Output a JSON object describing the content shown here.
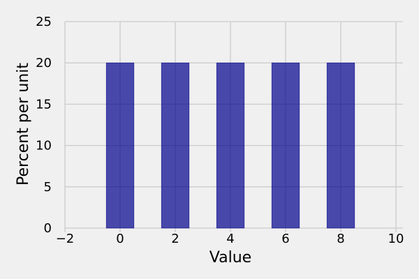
{
  "chart_data": {
    "type": "bar",
    "title": "",
    "xlabel": "Value",
    "ylabel": "Percent per unit",
    "xlim": [
      -2,
      10
    ],
    "ylim": [
      0,
      25
    ],
    "x_ticks": [
      -2,
      0,
      2,
      4,
      6,
      8,
      10
    ],
    "x_tick_labels": [
      "−2",
      "0",
      "2",
      "4",
      "6",
      "8",
      "10"
    ],
    "y_ticks": [
      0,
      5,
      10,
      15,
      20,
      25
    ],
    "y_tick_labels": [
      "0",
      "5",
      "10",
      "15",
      "20",
      "25"
    ],
    "bar_width": 1,
    "grid": true,
    "bars": [
      {
        "x": 0,
        "value": 20
      },
      {
        "x": 2,
        "value": 20
      },
      {
        "x": 4,
        "value": 20
      },
      {
        "x": 6,
        "value": 20
      },
      {
        "x": 8,
        "value": 20
      }
    ],
    "colors": {
      "background": "#f0f0f0",
      "bar_fill": "#00008b",
      "grid": "#cbcbcb",
      "text": "#000000"
    }
  }
}
